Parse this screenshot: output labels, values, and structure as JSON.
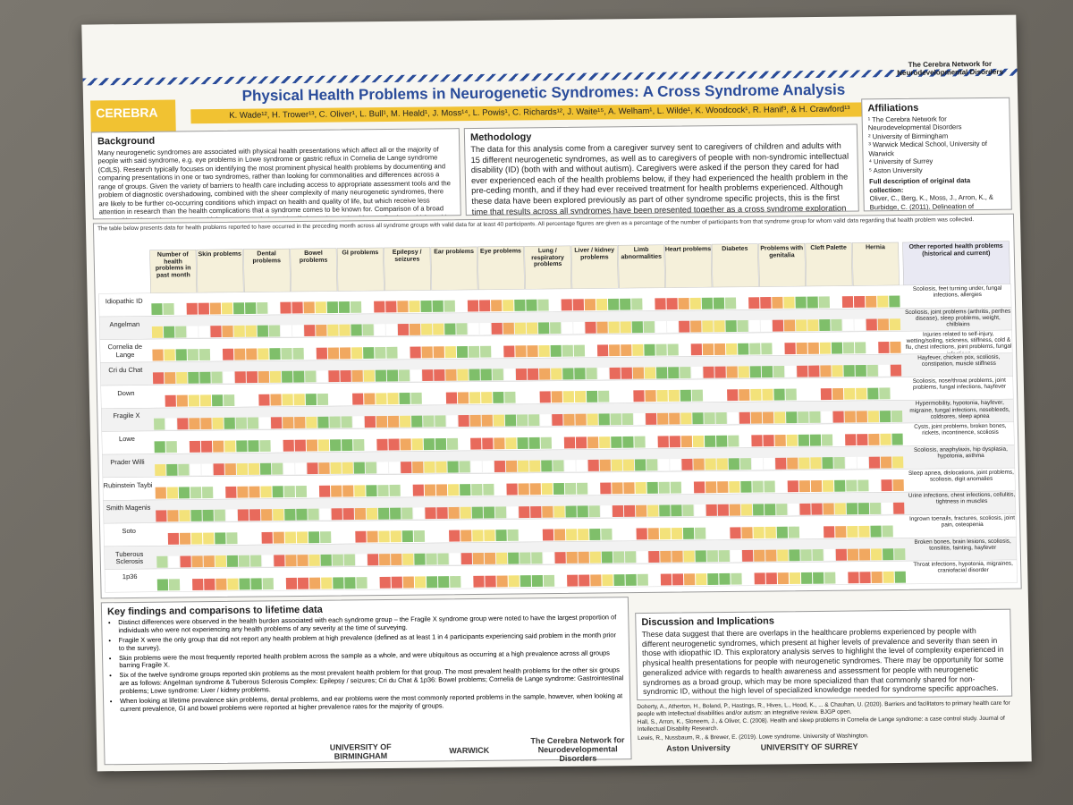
{
  "header": {
    "title": "Physical Health Problems in Neurogenetic Syndromes: A Cross Syndrome Analysis",
    "authors": "K. Wade¹², H. Trower¹³, C. Oliver¹, L. Bull¹, M. Heald¹, J. Moss¹⁴, L. Powis¹, C. Richards¹², J. Waite¹⁵, A. Welham¹, L. Wilde¹, K. Woodcock¹, R. Hanif³, & H. Crawford¹³",
    "logo": "CEREBRA",
    "network": "The Cerebra Network for Neurodevelopmental Disorders"
  },
  "background": {
    "heading": "Background",
    "text": "Many neurogenetic syndromes are associated with physical health presentations which affect all or the majority of people with said syndrome, e.g. eye problems in Lowe syndrome or gastric reflux in Cornelia de Lange syndrome (CdLS). Research typically focuses on identifying the most prominent physical health problems by documenting and comparing presentations in one or two syndromes, rather than looking for commonalities and differences across a range of groups. Given the variety of barriers to health care including access to appropriate assessment tools and the problem of diagnostic overshadowing, combined with the sheer complexity of many neurogenetic syndromes, there are likely to be further co-occurring conditions which impact on health and quality of life, but which receive less attention in research than the health complications that a syndrome comes to be known for. Comparison of a broad range of health problems across multiple groups may help to identify lesser known health complications which could otherwise be neglected."
  },
  "methodology": {
    "heading": "Methodology",
    "text": "The data for this analysis come from a caregiver survey sent to caregivers of children and adults with 15 different neurogenetic syndromes, as well as to caregivers of people with non-syndromic intellectual disability (ID) (both with and without autism). Caregivers were asked if the person they cared for had ever experienced each of the health problems below, if they had experienced the health problem in the pre-ceding month, and if they had ever received treatment for health problems experienced. Although these data have been explored previously as part of other syndrome specific projects, this is the first time that results across all syndromes have been presented together as a cross syndrome exploration of physical health."
  },
  "affiliations": {
    "heading": "Affiliations",
    "items": [
      "¹ The Cerebra Network for Neurodevelopmental Disorders",
      "² University of Birmingham",
      "³ Warwick Medical School, University of Warwick",
      "⁴ University of Surrey",
      "⁵ Aston University"
    ],
    "data_heading": "Full description of original data collection:",
    "data_text": "Oliver, C., Berg, K., Moss, J., Arron, K., & Burbidge, C. (2011). Delineation of behavioral phenotypes in genetic syndromes: characteristics of autism spectrum disorder, affect and hyperactivity. Journal of Autism and Developmental Disorders, 41(8), 1019-1032."
  },
  "table": {
    "note": "The table below presents data for health problems reported to have occurred in the preceding month across all syndrome groups with valid data for at least 40 participants. All percentage figures are given as a percentage of the number of participants from that syndrome group for whom valid data regarding that health problem was collected.",
    "columns": [
      "Number of health problems in past month",
      "Skin problems",
      "Dental problems",
      "Bowel problems",
      "GI problems",
      "Epilepsy / seizures",
      "Ear problems",
      "Eye problems",
      "Lung / respiratory problems",
      "Liver / kidney problems",
      "Limb abnormalities",
      "Heart problems",
      "Diabetes",
      "Problems with genitalia",
      "Cleft Palette",
      "Hernia",
      "Other reported health problems (historical and current)"
    ],
    "rows": [
      {
        "syndrome": "Idiopathic ID",
        "other": "Scoliosis, feet turning under, fungal infections, allergies"
      },
      {
        "syndrome": "Angelman",
        "other": "Scoliosis, joint problems (arthritis, perthes disease), sleep problems, weight, chilblains"
      },
      {
        "syndrome": "Cornelia de Lange",
        "other": "Injuries related to self-injury, wetting/soiling, sickness, stiffness, cold & flu, chest infections, joint problems, fungal infections"
      },
      {
        "syndrome": "Cri du Chat",
        "other": "Hayfever, chicken pox, scoliosis, constipation, muscle stiffness"
      },
      {
        "syndrome": "Down",
        "other": "Scoliosis, nose/throat problems, joint problems, fungal infections, hayfever"
      },
      {
        "syndrome": "Fragile X",
        "other": "Hypermobility, hypotonia, hayfever, migraine, fungal infections, nosebleeds, coldsores, sleep apnea"
      },
      {
        "syndrome": "Lowe",
        "other": "Cysts, joint problems, broken bones, rickets, incontinence, scoliosis"
      },
      {
        "syndrome": "Prader Willi",
        "other": "Scoliosis, anaphylaxis, hip dysplasia, hypotonia, asthma"
      },
      {
        "syndrome": "Rubinstein Taybi",
        "other": "Sleep apnea, dislocations, joint problems, scoliosis, digit anomalies"
      },
      {
        "syndrome": "Smith Magenis",
        "other": "Urine infections, chest infections, cellulitis, tightness in muscles"
      },
      {
        "syndrome": "Soto",
        "other": "Ingrown toenails, fractures, scoliosis, joint pain, osteopenia"
      },
      {
        "syndrome": "Tuberous Sclerosis",
        "other": "Broken bones, brain lesions, scoliosis, tonsilitis, fainting, hayfever"
      },
      {
        "syndrome": "1p36",
        "other": "Throat infections, hypotonia, migraines, craniofacial disorder"
      }
    ]
  },
  "key_findings": {
    "heading": "Key findings and comparisons to lifetime data",
    "items": [
      "Distinct differences were observed in the health burden associated with each syndrome group – the Fragile X syndrome group were noted to have the largest proportion of individuals who were not experiencing any health problems of any severity at the time of surveying.",
      "Fragile X were the only group that did not report any health problem at high prevalence (defined as at least 1 in 4 participants experiencing said problem in the month prior to the survey).",
      "Skin problems were the most frequently reported health problem across the sample as a whole, and were ubiquitous as occurring at a high prevalence across all groups barring Fragile X.",
      "Six of the twelve syndrome groups reported skin problems as the most prevalent health problem for that group. The most prevalent health problems for the other six groups are as follows: Angelman syndrome & Tuberous Sclerosis Complex: Epilepsy / seizures; Cri du Chat & 1p36: Bowel problems; Cornelia de Lange syndrome: Gastrointestinal problems; Lowe syndrome: Liver / kidney problems.",
      "When looking at lifetime prevalence skin problems, dental problems, and ear problems were the most commonly reported problems in the sample, however, when looking at current prevalence, GI and bowel problems were reported at higher prevalence rates for the majority of groups."
    ]
  },
  "discussion": {
    "heading": "Discussion and Implications",
    "text": "These data suggest that there are overlaps in the healthcare problems experienced by people with different neurogenetic syndromes, which present at higher levels of prevalence and severity than seen in those with idiopathic ID. This exploratory analysis serves to highlight the level of complexity experienced in physical health presentations for people with neurogenetic syndromes. There may be opportunity for some generalized advice with regards to health awareness and assessment for people with neurogenetic syndromes as a broad group, which may be more specialized than that commonly shared for non-syndromic ID, without the high level of specialized knowledge needed for syndrome specific approaches."
  },
  "references": [
    "Doherty, A., Atherton, H., Boland, P., Hastings, R., Hives, L., Hood, K., ... & Chauhan, U. (2020). Barriers and facilitators to primary health care for people with intellectual disabilities and/or autism: an integrative review. BJGP open.",
    "Hall, S., Arron, K., Sloneem, J., & Oliver, C. (2008). Health and sleep problems in Cornelia de Lange syndrome: a case control study. Journal of Intellectual Disability Research.",
    "Lewis, R., Nussbaum, R., & Brewer, E. (2019). Lowe syndrome. University of Washington."
  ],
  "logos": [
    "UNIVERSITY OF BIRMINGHAM",
    "WARWICK",
    "The Cerebra Network for Neurodevelopmental Disorders",
    "Aston University",
    "UNIVERSITY OF SURREY"
  ]
}
